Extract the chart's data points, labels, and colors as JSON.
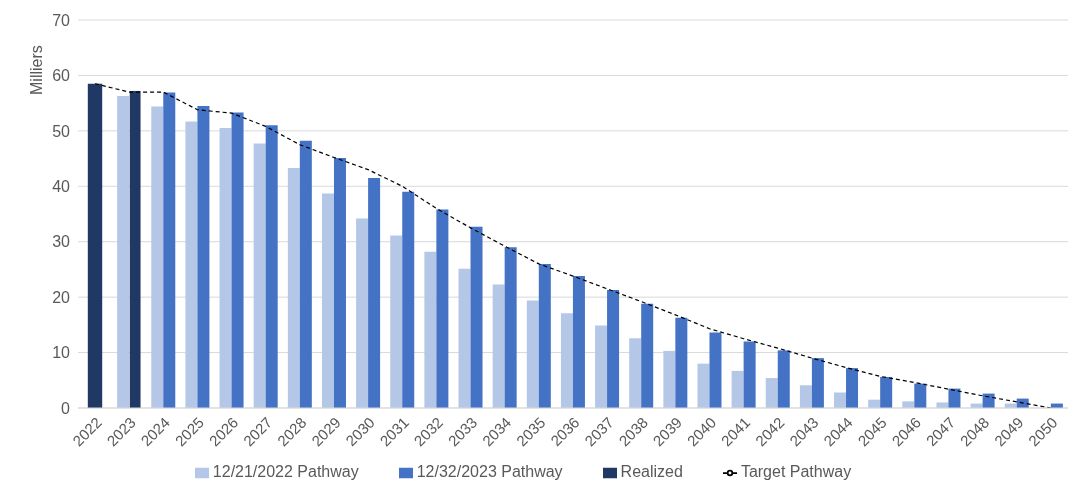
{
  "chart_data": {
    "type": "bar",
    "ylabel": "Milliers",
    "categories": [
      "2022",
      "2023",
      "2024",
      "2025",
      "2026",
      "2027",
      "2028",
      "2029",
      "2030",
      "2031",
      "2032",
      "2033",
      "2034",
      "2035",
      "2036",
      "2037",
      "2038",
      "2039",
      "2040",
      "2041",
      "2042",
      "2043",
      "2044",
      "2045",
      "2046",
      "2047",
      "2048",
      "2049",
      "2050"
    ],
    "series": [
      {
        "name": "12/21/2022 Pathway",
        "color": "#b4c7e7",
        "values": [
          null,
          56.3,
          54.4,
          51.7,
          50.5,
          47.7,
          43.3,
          38.7,
          34.2,
          31.1,
          28.2,
          25.1,
          22.3,
          19.4,
          17.1,
          14.9,
          12.6,
          10.3,
          8.0,
          6.7,
          5.4,
          4.1,
          2.8,
          1.5,
          1.2,
          1.0,
          0.8,
          0.8,
          null
        ]
      },
      {
        "name": "12/32/2023 Pathway",
        "color": "#4472c4",
        "values": [
          null,
          null,
          56.9,
          54.5,
          53.3,
          51.0,
          48.2,
          45.1,
          41.5,
          39.0,
          35.8,
          32.7,
          29.0,
          26.0,
          23.8,
          21.3,
          18.8,
          16.3,
          13.6,
          12.0,
          10.4,
          9.0,
          7.2,
          5.6,
          4.4,
          3.5,
          2.6,
          1.7,
          0.8
        ]
      },
      {
        "name": "Realized",
        "color": "#203864",
        "values": [
          58.5,
          57.2,
          null,
          null,
          null,
          null,
          null,
          null,
          null,
          null,
          null,
          null,
          null,
          null,
          null,
          null,
          null,
          null,
          null,
          null,
          null,
          null,
          null,
          null,
          null,
          null,
          null,
          null,
          null
        ]
      },
      {
        "name": "Target Pathway",
        "type": "line",
        "color": "#000000",
        "line_style": "dashed",
        "marker": "none",
        "values": [
          58.5,
          57.0,
          57.0,
          53.8,
          53.2,
          50.8,
          47.5,
          45.2,
          43.0,
          40.0,
          36.0,
          32.5,
          29.2,
          26.0,
          23.8,
          21.5,
          19.2,
          16.8,
          14.3,
          12.5,
          10.8,
          9.0,
          7.3,
          5.7,
          4.6,
          3.4,
          2.2,
          1.1,
          0
        ]
      }
    ],
    "ylim": [
      0,
      70
    ],
    "yticks": [
      0,
      10,
      20,
      30,
      40,
      50,
      60,
      70
    ],
    "grid": "y",
    "legend": "bottom"
  }
}
